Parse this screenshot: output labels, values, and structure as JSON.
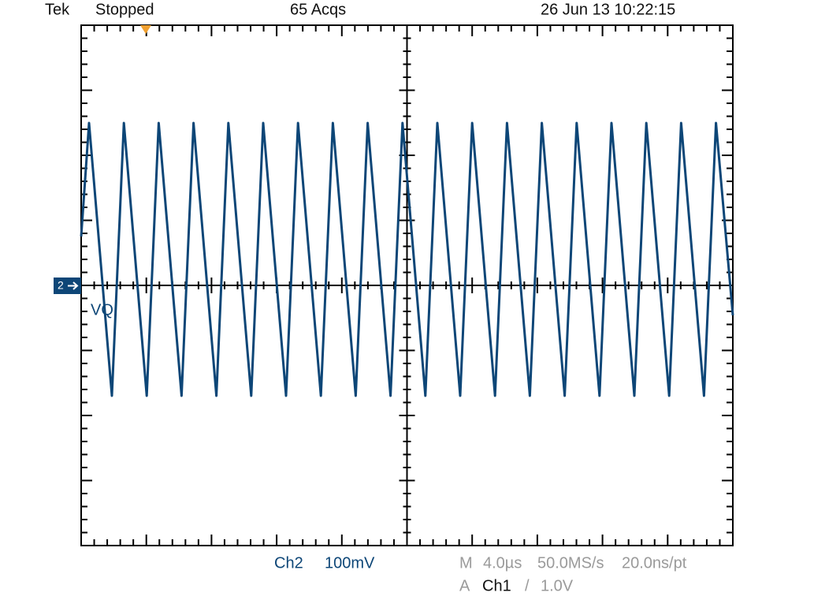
{
  "header": {
    "brand": "Tek",
    "status": "Stopped",
    "acquisitions": "65 Acqs",
    "timestamp": "26 Jun 13 10:22:15"
  },
  "channel": {
    "marker": "2",
    "label": "VQ",
    "name": "Ch2",
    "scale": "100mV"
  },
  "horizontal": {
    "prefix": "M",
    "scale": "4.0µs",
    "sample_rate": "50.0MS/s",
    "resolution": "20.0ns/pt"
  },
  "trigger": {
    "prefix": "A",
    "source": "Ch1",
    "separator": "/",
    "level": "1.0V"
  }
}
